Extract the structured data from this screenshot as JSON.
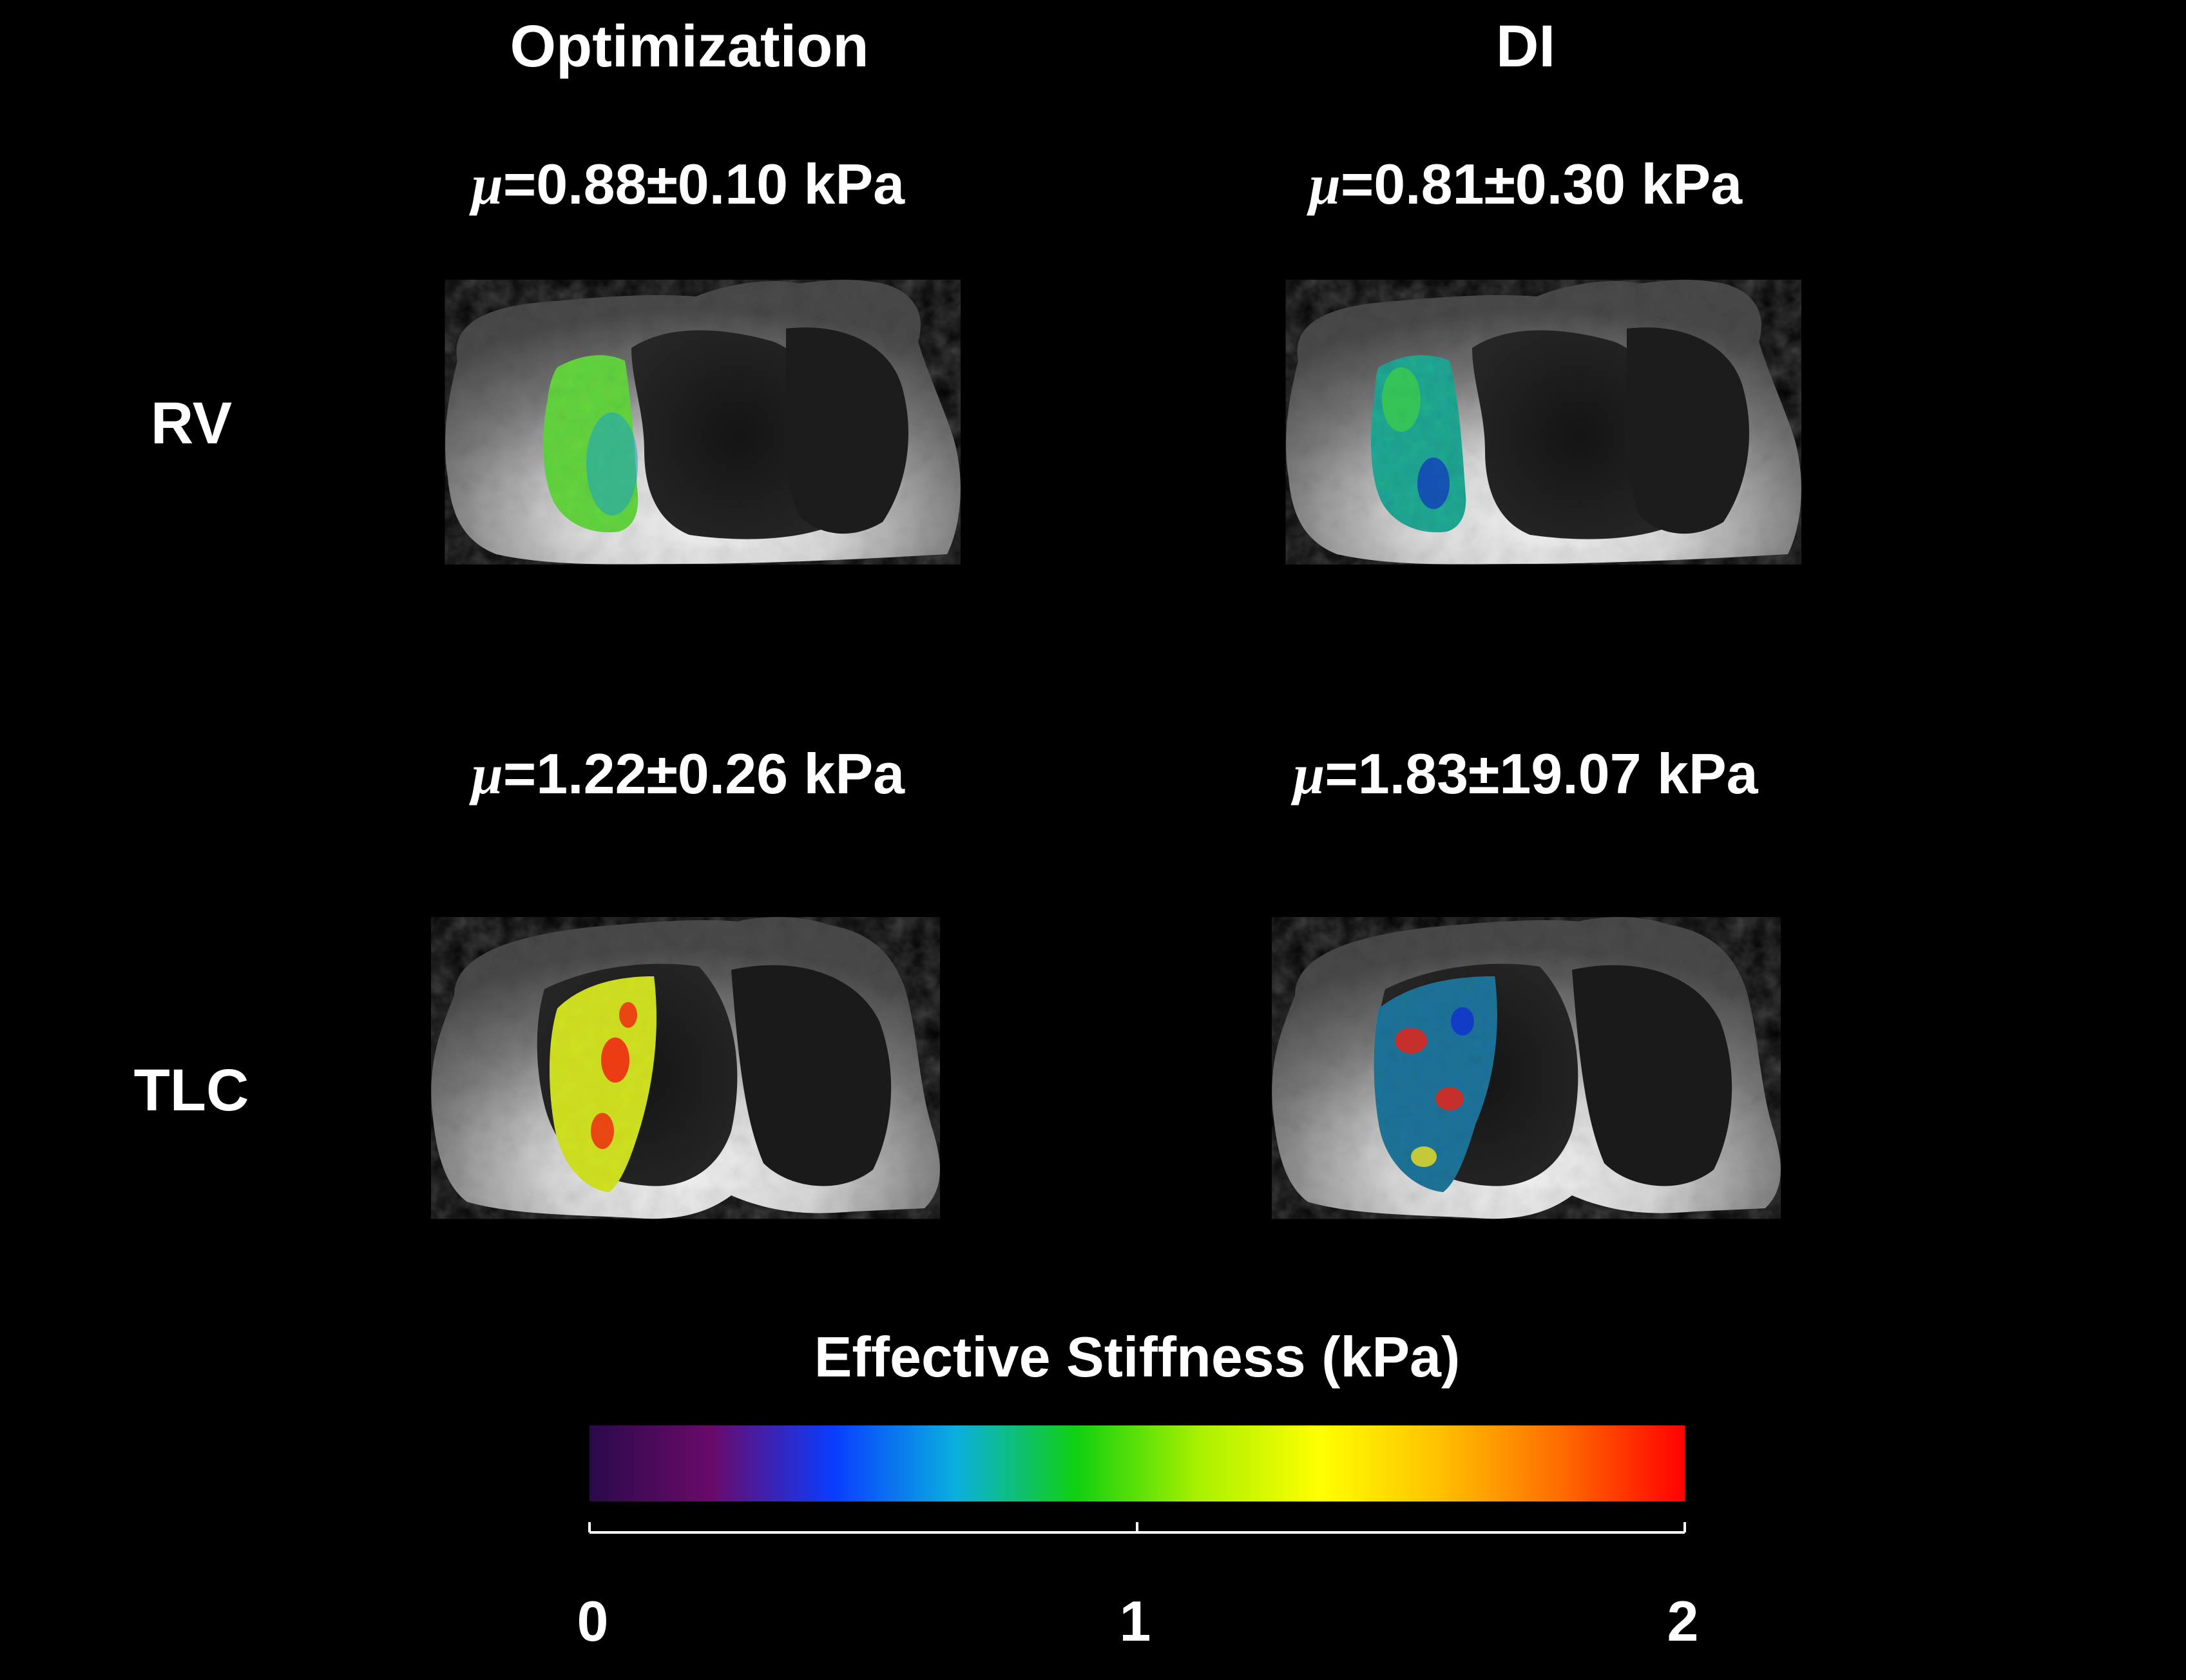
{
  "columns": {
    "left": "Optimization",
    "right": "DI"
  },
  "rows": {
    "top": "RV",
    "bottom": "TLC"
  },
  "panels": {
    "rv_opt": {
      "mu_symbol": "μ",
      "value": "=0.88±0.10 kPa"
    },
    "rv_di": {
      "mu_symbol": "μ",
      "value": "=0.81±0.30 kPa"
    },
    "tlc_opt": {
      "mu_symbol": "μ",
      "value": "=1.22±0.26 kPa"
    },
    "tlc_di": {
      "mu_symbol": "μ",
      "value": "=1.83±19.07 kPa"
    }
  },
  "colorbar": {
    "title": "Effective Stiffness (kPa)",
    "ticks": [
      "0",
      "1",
      "2"
    ],
    "range": [
      0,
      2
    ],
    "colors": [
      "#2a0a4a",
      "#6a0a6a",
      "#0a3cff",
      "#0aaee0",
      "#10d010",
      "#a8f000",
      "#ffff00",
      "#ffc000",
      "#ff6a00",
      "#ff0000"
    ]
  },
  "image_description_icons": [
    "mri-chest-slice",
    "stiffness-overlay"
  ]
}
